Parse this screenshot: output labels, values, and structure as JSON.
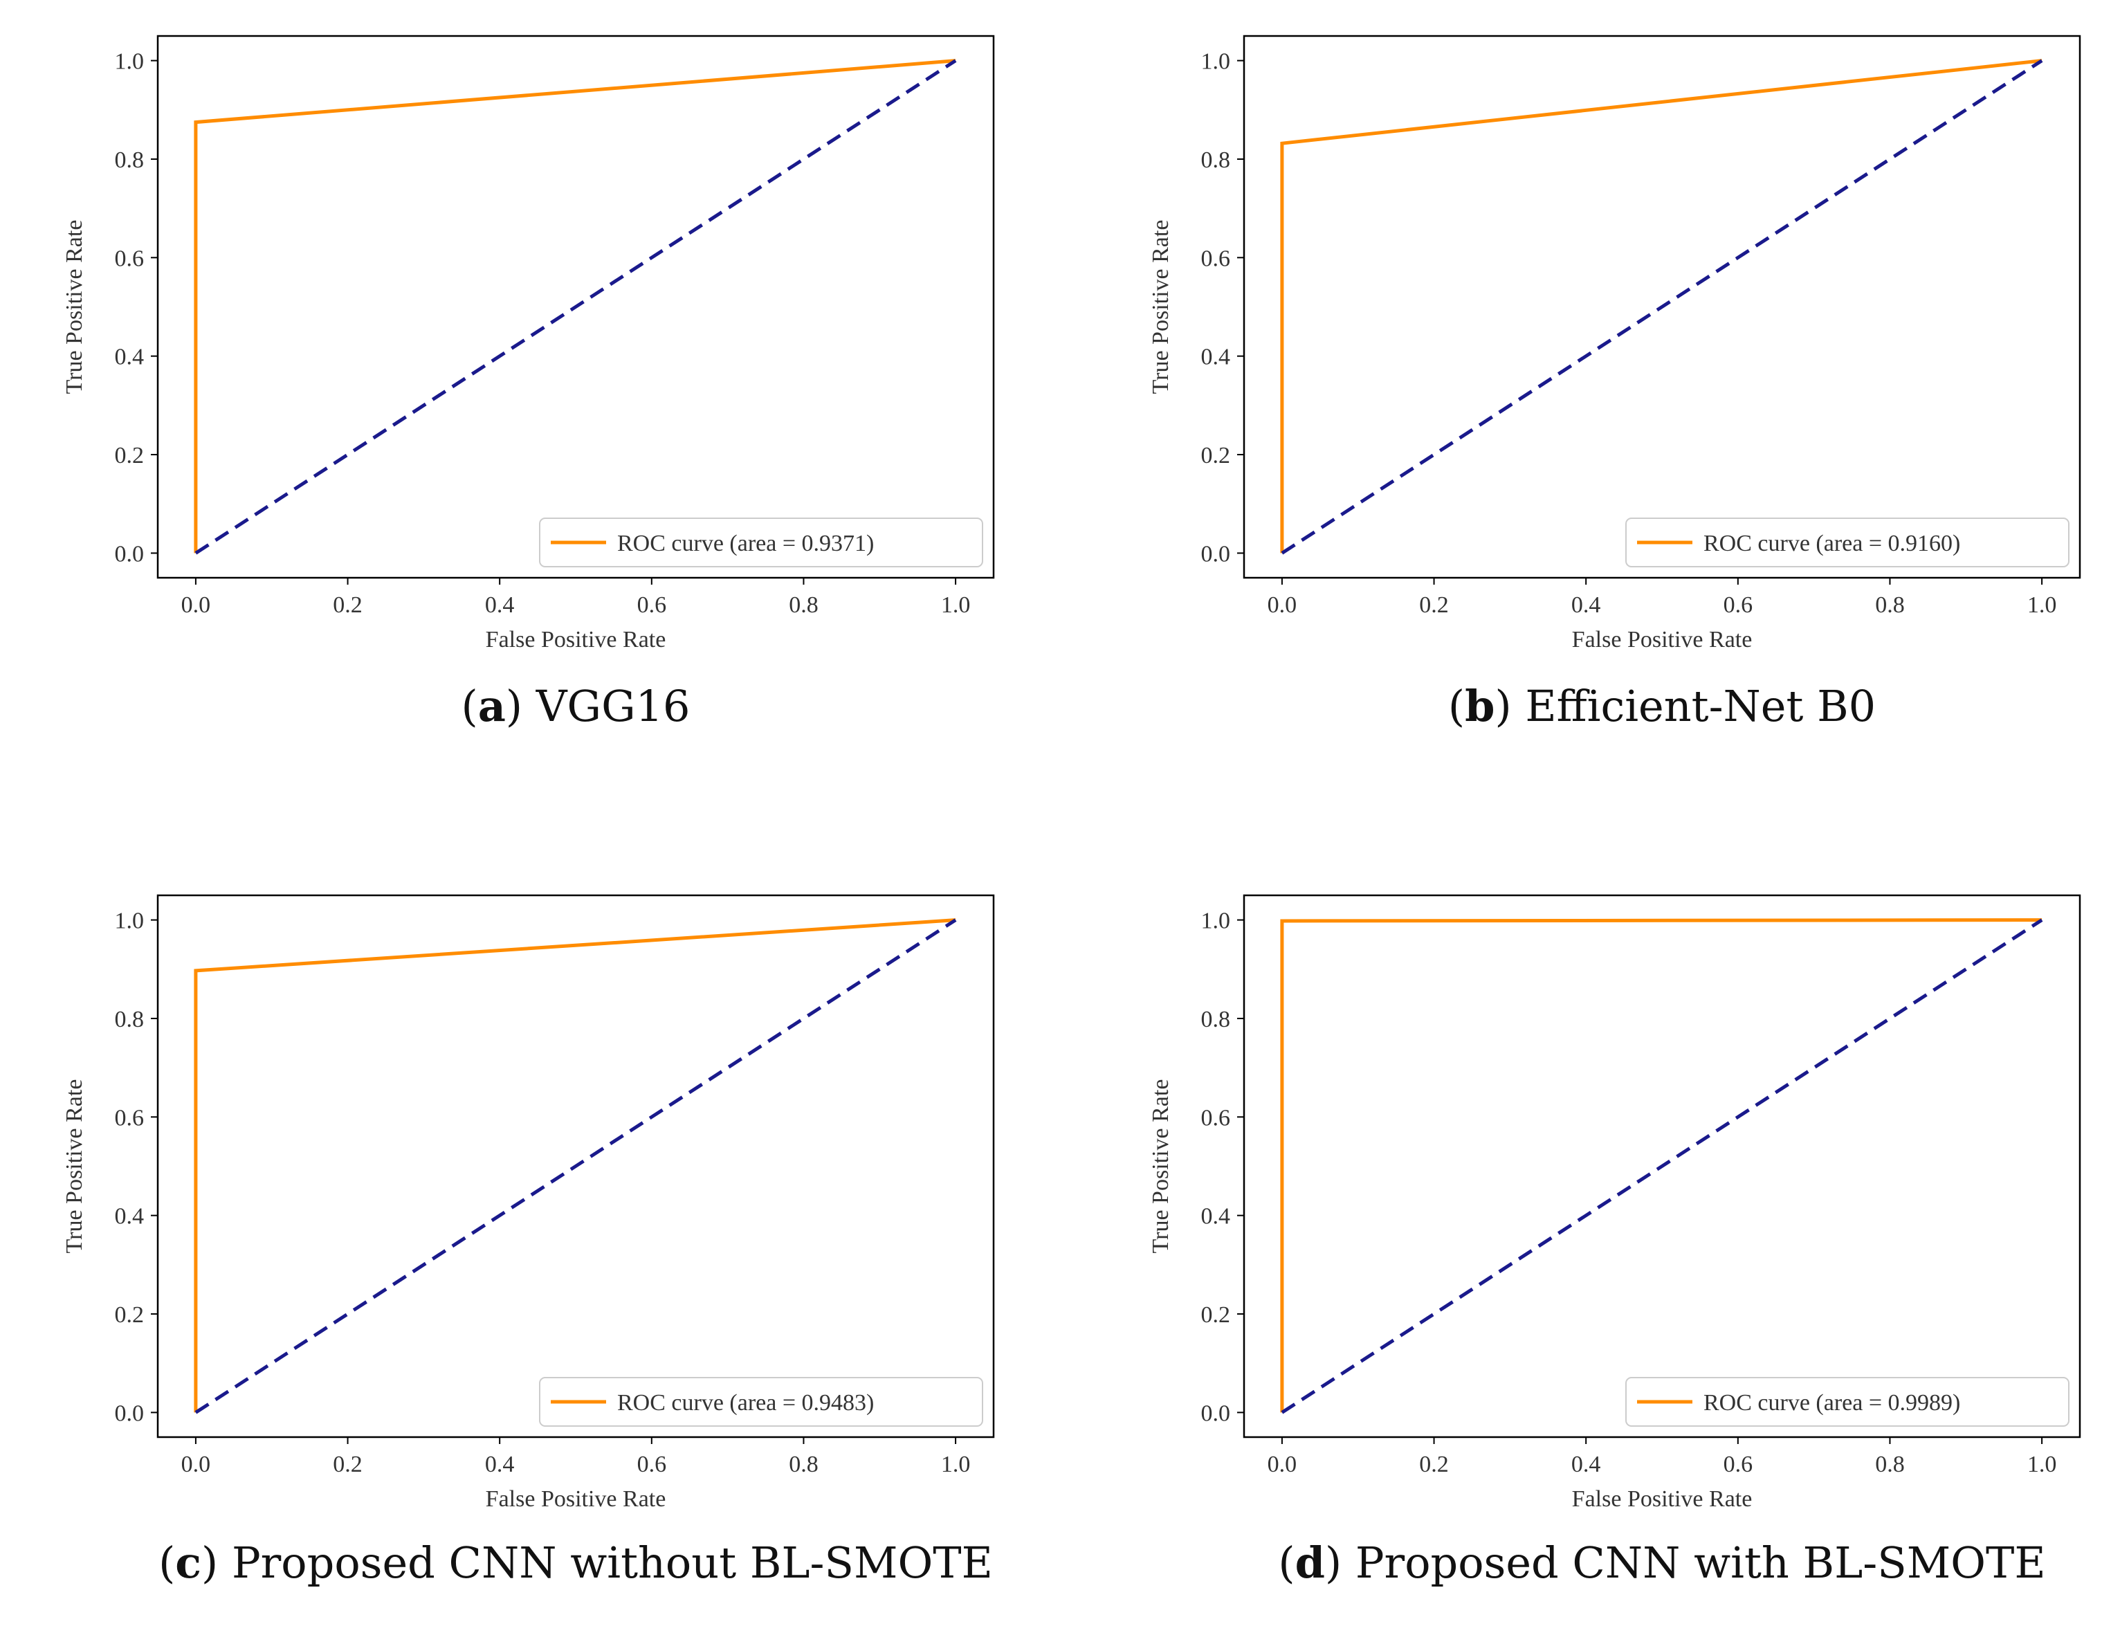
{
  "chart_data": [
    {
      "type": "line",
      "panel_id": "a",
      "caption_letter": "a",
      "caption_text": "VGG16",
      "xlabel": "False Positive Rate",
      "ylabel": "True Positive Rate",
      "xlim": [
        -0.05,
        1.05
      ],
      "ylim": [
        -0.05,
        1.05
      ],
      "xticks": [
        0.0,
        0.2,
        0.4,
        0.6,
        0.8,
        1.0
      ],
      "yticks": [
        0.0,
        0.2,
        0.4,
        0.6,
        0.8,
        1.0
      ],
      "series": [
        {
          "name": "ROC curve (area = 0.9371)",
          "x": [
            0.0,
            0.0,
            1.0
          ],
          "y": [
            0.0,
            0.875,
            1.0
          ],
          "color": "#ff8c00",
          "style": "solid"
        },
        {
          "name": "chance",
          "x": [
            0.0,
            1.0
          ],
          "y": [
            0.0,
            1.0
          ],
          "color": "#1a1a8c",
          "style": "dashed"
        }
      ],
      "legend": {
        "label": "ROC curve (area = 0.9371)",
        "position": "lower-right"
      }
    },
    {
      "type": "line",
      "panel_id": "b",
      "caption_letter": "b",
      "caption_text": "Efficient-Net B0",
      "xlabel": "False Positive Rate",
      "ylabel": "True Positive Rate",
      "xlim": [
        -0.05,
        1.05
      ],
      "ylim": [
        -0.05,
        1.05
      ],
      "xticks": [
        0.0,
        0.2,
        0.4,
        0.6,
        0.8,
        1.0
      ],
      "yticks": [
        0.0,
        0.2,
        0.4,
        0.6,
        0.8,
        1.0
      ],
      "series": [
        {
          "name": "ROC curve (area = 0.9160)",
          "x": [
            0.0,
            0.0,
            1.0
          ],
          "y": [
            0.0,
            0.832,
            1.0
          ],
          "color": "#ff8c00",
          "style": "solid"
        },
        {
          "name": "chance",
          "x": [
            0.0,
            1.0
          ],
          "y": [
            0.0,
            1.0
          ],
          "color": "#1a1a8c",
          "style": "dashed"
        }
      ],
      "legend": {
        "label": "ROC curve (area = 0.9160)",
        "position": "lower-right"
      }
    },
    {
      "type": "line",
      "panel_id": "c",
      "caption_letter": "c",
      "caption_text": "Proposed CNN without BL-SMOTE",
      "xlabel": "False Positive Rate",
      "ylabel": "True Positive Rate",
      "xlim": [
        -0.05,
        1.05
      ],
      "ylim": [
        -0.05,
        1.05
      ],
      "xticks": [
        0.0,
        0.2,
        0.4,
        0.6,
        0.8,
        1.0
      ],
      "yticks": [
        0.0,
        0.2,
        0.4,
        0.6,
        0.8,
        1.0
      ],
      "series": [
        {
          "name": "ROC curve (area = 0.9483)",
          "x": [
            0.0,
            0.0,
            1.0
          ],
          "y": [
            0.0,
            0.897,
            1.0
          ],
          "color": "#ff8c00",
          "style": "solid"
        },
        {
          "name": "chance",
          "x": [
            0.0,
            1.0
          ],
          "y": [
            0.0,
            1.0
          ],
          "color": "#1a1a8c",
          "style": "dashed"
        }
      ],
      "legend": {
        "label": "ROC curve (area = 0.9483)",
        "position": "lower-right"
      }
    },
    {
      "type": "line",
      "panel_id": "d",
      "caption_letter": "d",
      "caption_text": "Proposed CNN with BL-SMOTE",
      "xlabel": "False Positive Rate",
      "ylabel": "True Positive Rate",
      "xlim": [
        -0.05,
        1.05
      ],
      "ylim": [
        -0.05,
        1.05
      ],
      "xticks": [
        0.0,
        0.2,
        0.4,
        0.6,
        0.8,
        1.0
      ],
      "yticks": [
        0.0,
        0.2,
        0.4,
        0.6,
        0.8,
        1.0
      ],
      "series": [
        {
          "name": "ROC curve (area = 0.9989)",
          "x": [
            0.0,
            0.0,
            1.0
          ],
          "y": [
            0.0,
            0.998,
            1.0
          ],
          "color": "#ff8c00",
          "style": "solid"
        },
        {
          "name": "chance",
          "x": [
            0.0,
            1.0
          ],
          "y": [
            0.0,
            1.0
          ],
          "color": "#1a1a8c",
          "style": "dashed"
        }
      ],
      "legend": {
        "label": "ROC curve (area = 0.9989)",
        "position": "lower-right"
      }
    }
  ]
}
